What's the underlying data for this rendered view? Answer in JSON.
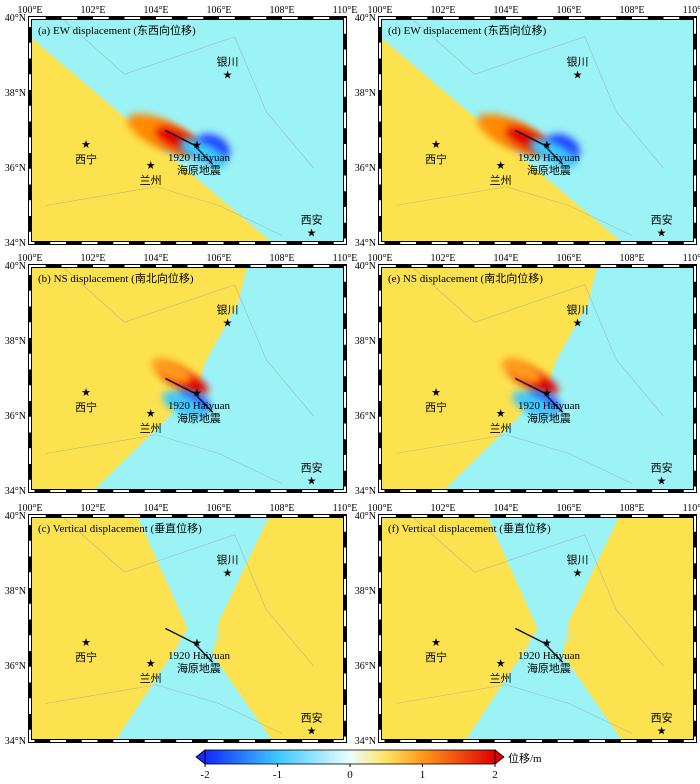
{
  "panels": [
    {
      "title": "(a) EW displacement (东西向位移)"
    },
    {
      "title": "(b) NS displacement (南北向位移)"
    },
    {
      "title": "(c) Vertical displacement (垂直位移)"
    },
    {
      "title": "(d) EW displacement (东西向位移)"
    },
    {
      "title": "(e) NS displacement (南北向位移)"
    },
    {
      "title": "(f) Vertical displacement (垂直位移)"
    }
  ],
  "lon_labels": [
    "100°E",
    "102°E",
    "104°E",
    "106°E",
    "108°E",
    "110°E"
  ],
  "lat_labels": [
    "34°N",
    "36°N",
    "38°N",
    "40°N"
  ],
  "cities": [
    "银川",
    "西宁",
    "兰州",
    "西安"
  ],
  "event": [
    "1920 Haiyuan",
    "海原地震"
  ],
  "colorbar": {
    "ticks": [
      -2,
      -1,
      0,
      1,
      2
    ],
    "label": "位移/m"
  }
}
